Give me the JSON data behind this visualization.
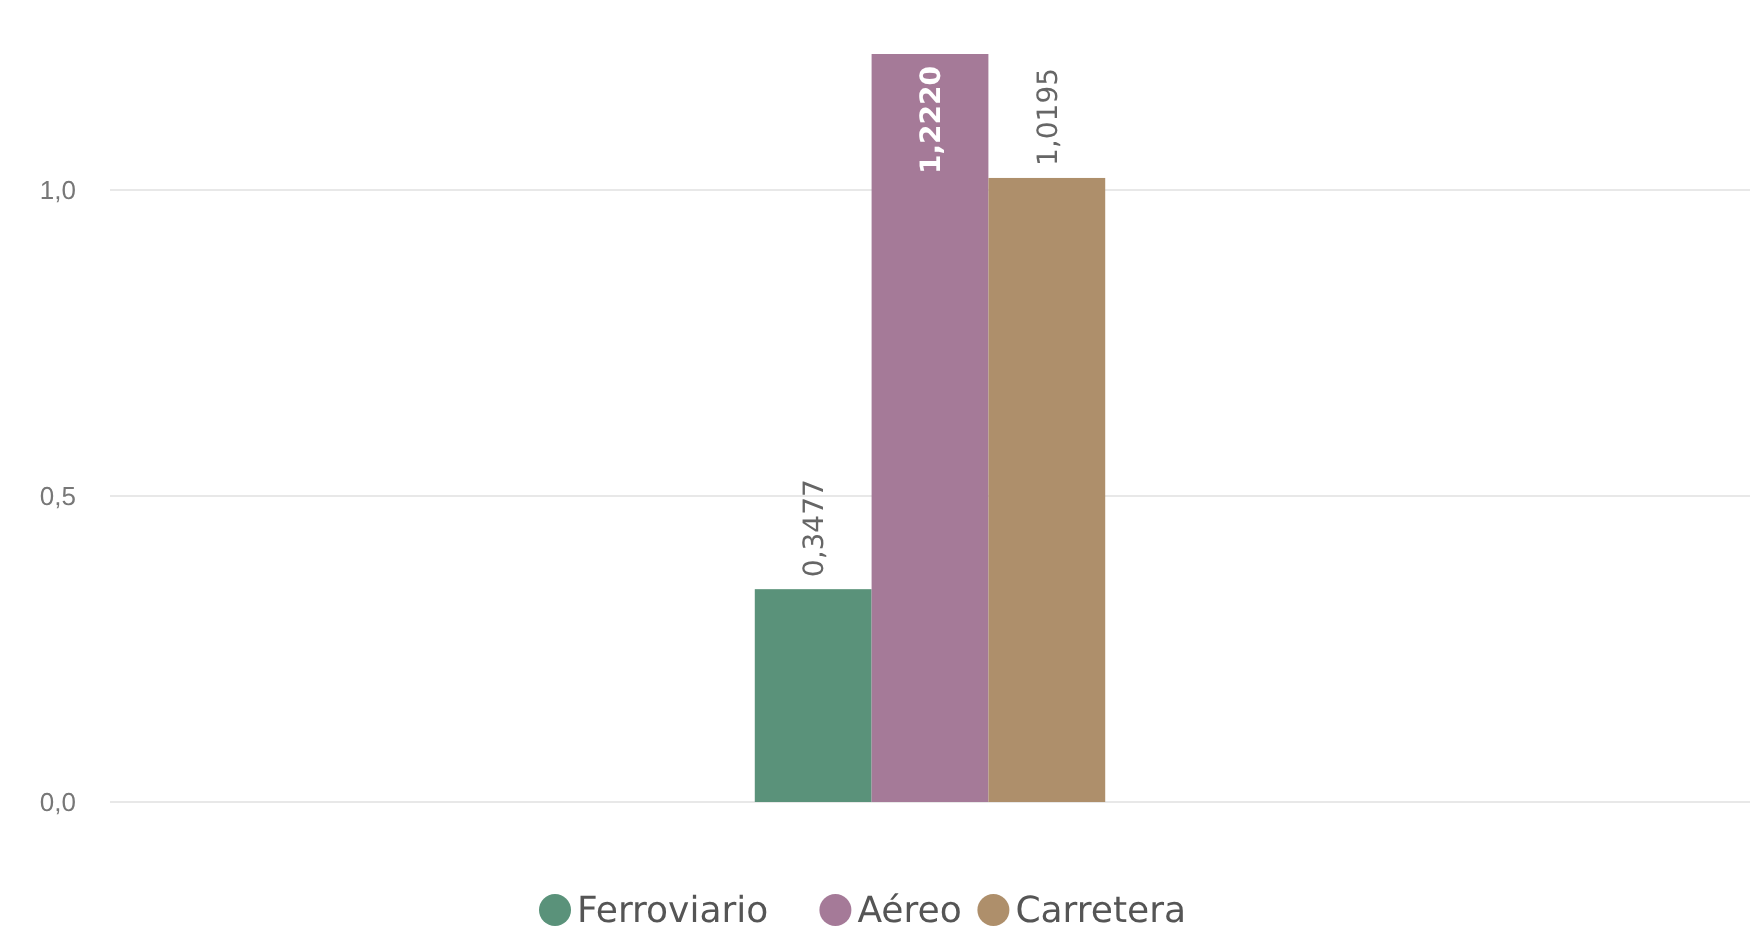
{
  "chart_data": {
    "type": "bar",
    "categories": [
      null
    ],
    "series": [
      {
        "name": "Ferroviario",
        "color": "#5a927a",
        "values": [
          0.3477
        ]
      },
      {
        "name": "Aéreo",
        "color": "#a57a98",
        "values": [
          1.222
        ]
      },
      {
        "name": "Carretera",
        "color": "#ae8f6b",
        "values": [
          1.0195
        ]
      }
    ],
    "value_labels": [
      [
        "0,3477"
      ],
      [
        "1,2220"
      ],
      [
        "1,0195"
      ]
    ],
    "ylim": [
      0,
      1.222
    ],
    "yticks": [
      {
        "value": 0,
        "label": "0,0"
      },
      {
        "value": 0.5,
        "label": "0,5"
      },
      {
        "value": 1,
        "label": "1,0"
      }
    ],
    "grid": "y",
    "legend": "bottom"
  }
}
